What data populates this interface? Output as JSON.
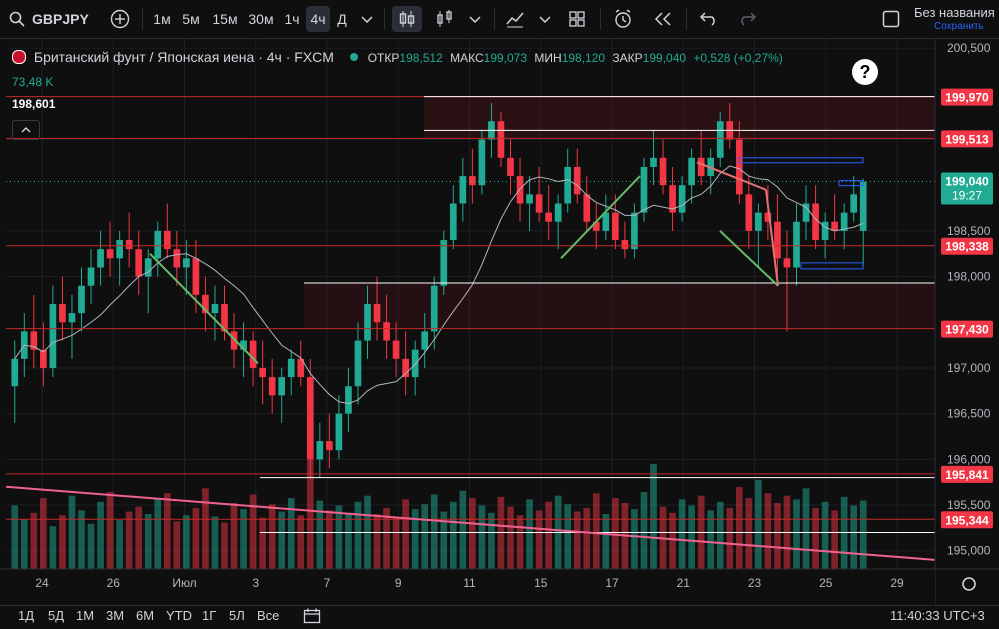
{
  "toolbar": {
    "symbol": "GBPJPY",
    "intervals": [
      "1м",
      "5м",
      "15м",
      "30м",
      "1ч",
      "4ч",
      "Д"
    ],
    "active_interval": "4ч",
    "save_title": "Без названия",
    "save_subtitle": "Сохранить"
  },
  "legend": {
    "title": "Британский фунт / Японская иена · 4ч · FXCM",
    "open_label": "ОТКР",
    "open": "198,512",
    "high_label": "МАКС",
    "high": "199,073",
    "low_label": "МИН",
    "low": "198,120",
    "close_label": "ЗАКР",
    "close": "199,040",
    "change": "+0,528 (+0,27%)",
    "volume": "73,48 K",
    "indicator_value": "198,601"
  },
  "colors": {
    "up": "#22ab94",
    "down": "#f23645",
    "accent": "#2962ff",
    "price_label_bg": "#f23645",
    "current_price_bg": "#22ab94"
  },
  "price_axis": {
    "ticks": [
      "200,500",
      "199,500",
      "198,500",
      "198,000",
      "197,000",
      "196,500",
      "196,000",
      "195,500",
      "195,000"
    ],
    "labels": [
      {
        "value": "199,970"
      },
      {
        "value": "199,513"
      },
      {
        "value": "198,338"
      },
      {
        "value": "197,430"
      },
      {
        "value": "195,841"
      },
      {
        "value": "195,344"
      }
    ],
    "current_price": "199,040",
    "countdown": "19:27"
  },
  "time_axis": {
    "labels": [
      "24",
      "26",
      "Июл",
      "3",
      "7",
      "9",
      "11",
      "15",
      "17",
      "21",
      "23",
      "25",
      "29"
    ]
  },
  "bottom_bar": {
    "ranges": [
      "1Д",
      "5Д",
      "1М",
      "3М",
      "6М",
      "YTD",
      "1Г",
      "5Л",
      "Все"
    ],
    "clock": "11:40:33 UTC+3"
  },
  "chart_data": {
    "type": "candlestick",
    "y_range": [
      194.8,
      200.6
    ],
    "candles": [
      [
        196.8,
        197.3,
        196.4,
        197.1
      ],
      [
        197.1,
        197.6,
        196.9,
        197.4
      ],
      [
        197.4,
        197.8,
        197.0,
        197.2
      ],
      [
        197.2,
        197.5,
        196.8,
        197.0
      ],
      [
        197.0,
        197.9,
        196.9,
        197.7
      ],
      [
        197.7,
        198.0,
        197.3,
        197.5
      ],
      [
        197.5,
        197.8,
        197.1,
        197.6
      ],
      [
        197.6,
        198.1,
        197.4,
        197.9
      ],
      [
        197.9,
        198.3,
        197.7,
        198.1
      ],
      [
        198.1,
        198.5,
        197.9,
        198.3
      ],
      [
        198.3,
        198.6,
        198.0,
        198.2
      ],
      [
        198.2,
        198.5,
        197.9,
        198.4
      ],
      [
        198.4,
        198.7,
        198.1,
        198.3
      ],
      [
        198.3,
        198.5,
        197.8,
        198.0
      ],
      [
        198.0,
        198.3,
        197.6,
        198.2
      ],
      [
        198.2,
        198.6,
        198.0,
        198.5
      ],
      [
        198.5,
        198.8,
        198.2,
        198.3
      ],
      [
        198.3,
        198.5,
        197.9,
        198.1
      ],
      [
        198.1,
        198.4,
        197.8,
        198.2
      ],
      [
        198.2,
        198.4,
        197.6,
        197.8
      ],
      [
        197.8,
        198.0,
        197.4,
        197.6
      ],
      [
        197.6,
        197.9,
        197.3,
        197.7
      ],
      [
        197.7,
        197.9,
        197.3,
        197.4
      ],
      [
        197.4,
        197.6,
        197.0,
        197.2
      ],
      [
        197.2,
        197.5,
        196.9,
        197.3
      ],
      [
        197.3,
        197.4,
        196.8,
        197.0
      ],
      [
        197.0,
        197.3,
        196.6,
        196.9
      ],
      [
        196.9,
        197.1,
        196.5,
        196.7
      ],
      [
        196.7,
        197.0,
        196.4,
        196.9
      ],
      [
        196.9,
        197.2,
        196.7,
        197.1
      ],
      [
        197.1,
        197.3,
        196.8,
        196.9
      ],
      [
        196.9,
        197.1,
        195.8,
        196.0
      ],
      [
        196.0,
        196.4,
        195.8,
        196.2
      ],
      [
        196.2,
        196.5,
        195.9,
        196.1
      ],
      [
        196.1,
        196.7,
        196.0,
        196.5
      ],
      [
        196.5,
        197.0,
        196.3,
        196.8
      ],
      [
        196.8,
        197.5,
        196.6,
        197.3
      ],
      [
        197.3,
        197.9,
        197.1,
        197.7
      ],
      [
        197.7,
        198.0,
        197.3,
        197.5
      ],
      [
        197.5,
        197.8,
        197.1,
        197.3
      ],
      [
        197.3,
        197.5,
        196.9,
        197.1
      ],
      [
        197.1,
        197.4,
        196.7,
        196.9
      ],
      [
        196.9,
        197.3,
        196.7,
        197.2
      ],
      [
        197.2,
        197.6,
        197.0,
        197.4
      ],
      [
        197.4,
        198.0,
        197.2,
        197.9
      ],
      [
        197.9,
        198.5,
        197.8,
        198.4
      ],
      [
        198.4,
        199.0,
        198.3,
        198.8
      ],
      [
        198.8,
        199.3,
        198.6,
        199.1
      ],
      [
        199.1,
        199.4,
        198.8,
        199.0
      ],
      [
        199.0,
        199.6,
        198.9,
        199.5
      ],
      [
        199.5,
        199.9,
        199.3,
        199.7
      ],
      [
        199.7,
        199.8,
        199.2,
        199.3
      ],
      [
        199.3,
        199.5,
        198.9,
        199.1
      ],
      [
        199.1,
        199.3,
        198.6,
        198.8
      ],
      [
        198.8,
        199.1,
        198.5,
        198.9
      ],
      [
        198.9,
        199.2,
        198.6,
        198.7
      ],
      [
        198.7,
        199.0,
        198.4,
        198.6
      ],
      [
        198.6,
        198.9,
        198.3,
        198.8
      ],
      [
        198.8,
        199.4,
        198.7,
        199.2
      ],
      [
        199.2,
        199.4,
        198.8,
        198.9
      ],
      [
        198.9,
        199.1,
        198.5,
        198.6
      ],
      [
        198.6,
        198.8,
        198.3,
        198.5
      ],
      [
        198.5,
        198.9,
        198.4,
        198.7
      ],
      [
        198.7,
        198.9,
        198.3,
        198.4
      ],
      [
        198.4,
        198.6,
        198.2,
        198.3
      ],
      [
        198.3,
        198.8,
        198.2,
        198.7
      ],
      [
        198.7,
        199.3,
        198.6,
        199.2
      ],
      [
        199.2,
        199.6,
        199.0,
        199.3
      ],
      [
        199.3,
        199.5,
        198.9,
        199.0
      ],
      [
        199.0,
        199.2,
        198.5,
        198.7
      ],
      [
        198.7,
        199.1,
        198.6,
        199.0
      ],
      [
        199.0,
        199.4,
        198.8,
        199.3
      ],
      [
        199.3,
        199.6,
        199.0,
        199.1
      ],
      [
        199.1,
        199.4,
        198.9,
        199.3
      ],
      [
        199.3,
        199.8,
        199.2,
        199.7
      ],
      [
        199.7,
        199.9,
        199.4,
        199.5
      ],
      [
        199.5,
        199.7,
        198.8,
        198.9
      ],
      [
        198.9,
        199.1,
        198.3,
        198.5
      ],
      [
        198.5,
        198.8,
        198.1,
        198.7
      ],
      [
        198.7,
        199.0,
        198.4,
        198.6
      ],
      [
        198.6,
        198.9,
        198.0,
        198.2
      ],
      [
        198.2,
        198.5,
        197.4,
        198.1
      ],
      [
        198.1,
        198.8,
        197.9,
        198.6
      ],
      [
        198.6,
        199.0,
        198.4,
        198.8
      ],
      [
        198.8,
        199.0,
        198.3,
        198.4
      ],
      [
        198.4,
        198.7,
        198.2,
        198.6
      ],
      [
        198.6,
        198.9,
        198.4,
        198.5
      ],
      [
        198.5,
        198.8,
        198.3,
        198.7
      ],
      [
        198.7,
        199.1,
        198.6,
        198.9
      ],
      [
        198.5,
        199.07,
        198.12,
        199.04
      ]
    ],
    "volumes": [
      52,
      41,
      46,
      58,
      35,
      44,
      60,
      48,
      37,
      55,
      63,
      40,
      47,
      51,
      45,
      57,
      62,
      39,
      44,
      50,
      66,
      43,
      38,
      54,
      49,
      61,
      42,
      53,
      47,
      58,
      44,
      90,
      56,
      48,
      52,
      46,
      55,
      60,
      45,
      50,
      42,
      57,
      49,
      53,
      61,
      47,
      55,
      64,
      58,
      52,
      46,
      59,
      51,
      44,
      57,
      48,
      55,
      60,
      53,
      47,
      50,
      62,
      45,
      58,
      54,
      49,
      63,
      86,
      51,
      46,
      57,
      52,
      60,
      48,
      55,
      50,
      67,
      58,
      73,
      62,
      54,
      60,
      57,
      66,
      50,
      55,
      48,
      59,
      52,
      56
    ],
    "horizontal_levels": [
      "199,970",
      "199,513",
      "198,338",
      "197,430",
      "195,841",
      "195,344"
    ]
  }
}
